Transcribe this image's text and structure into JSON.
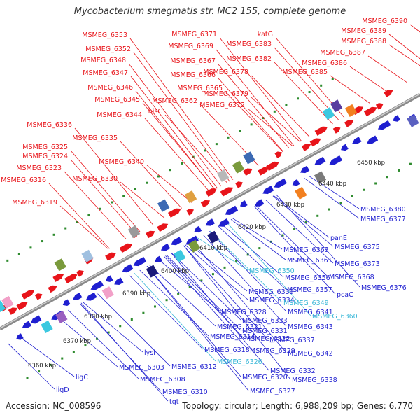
{
  "title": "Mycobacterium smegmatis str. MC2 155, complete genome",
  "footer": {
    "accession": "Accession: NC_008596",
    "topology": "Topology: circular; Length: 6,988,209 bp; Genes: 6,770"
  },
  "colors": {
    "forward_label": "#e8141a",
    "reverse_label": "#1f1fd0",
    "highlight_label": "#3cb8d8",
    "backbone": "#8a8a8a",
    "ticks": "#2e8b2e"
  },
  "scale_ticks": [
    {
      "label": "6360 kbp"
    },
    {
      "label": "6370 kbp"
    },
    {
      "label": "6380 kbp"
    },
    {
      "label": "6390 kbp"
    },
    {
      "label": "6400 kbp"
    },
    {
      "label": "6410 kbp"
    },
    {
      "label": "6420 kbp"
    },
    {
      "label": "6430 kbp"
    },
    {
      "label": "6440 kbp"
    },
    {
      "label": "6450 kbp"
    }
  ],
  "forward_labels": [
    "MSMEG_6390",
    "MSMEG_6389",
    "MSMEG_6388",
    "MSMEG_6387",
    "MSMEG_6386",
    "MSMEG_6385",
    "katG",
    "MSMEG_6383",
    "MSMEG_6382",
    "MSMEG_6378",
    "MSMEG_6379",
    "MSMEG_6372",
    "MSMEG_6371",
    "MSMEG_6369",
    "MSMEG_6367",
    "MSMEG_6366",
    "MSMEG_6365",
    "MSMEG_6362",
    "MSMEG_6353",
    "MSMEG_6352",
    "MSMEG_6348",
    "MSMEG_6347",
    "MSMEG_6346",
    "MSMEG_6345",
    "hisC",
    "MSMEG_6344",
    "MSMEG_6336",
    "MSMEG_6335",
    "MSMEG_6325",
    "MSMEG_6324",
    "MSMEG_6340",
    "MSMEG_6323",
    "MSMEG_6330",
    "MSMEG_6316",
    "MSMEG_6319"
  ],
  "reverse_labels": [
    "MSMEG_6380",
    "MSMEG_6377",
    "panE",
    "MSMEG_6375",
    "MSMEG_6363",
    "MSMEG_6373",
    "MSMEG_6361",
    "MSMEG_6368",
    "MSMEG_6356",
    "MSMEG_6376",
    "MSMEG_6357",
    "pcaC",
    "MSMEG_6339",
    "MSMEG_6334",
    "MSMEG_6341",
    "MSMEG_6328",
    "MSMEG_6333",
    "MSMEG_6343",
    "MSMEG_6321",
    "MSMEG_6331",
    "MSMEG_6314",
    "MSMEG_6322",
    "MSMEG_6337",
    "MSMEG_6318",
    "MSMEG_6329",
    "MSMEG_6342",
    "lysl",
    "MSMEG_6312",
    "MSMEG_6332",
    "MSMEG_6303",
    "MSMEG_6320",
    "MSMEG_6338",
    "MSMEG_6308",
    "MSMEG_6327",
    "MSMEG_6310",
    "tgt",
    "ligC",
    "ligD"
  ],
  "highlight_labels": [
    "MSMEG_6350",
    "MSMEG_6349",
    "MSMEG_6360",
    "MSMEG_6326"
  ]
}
